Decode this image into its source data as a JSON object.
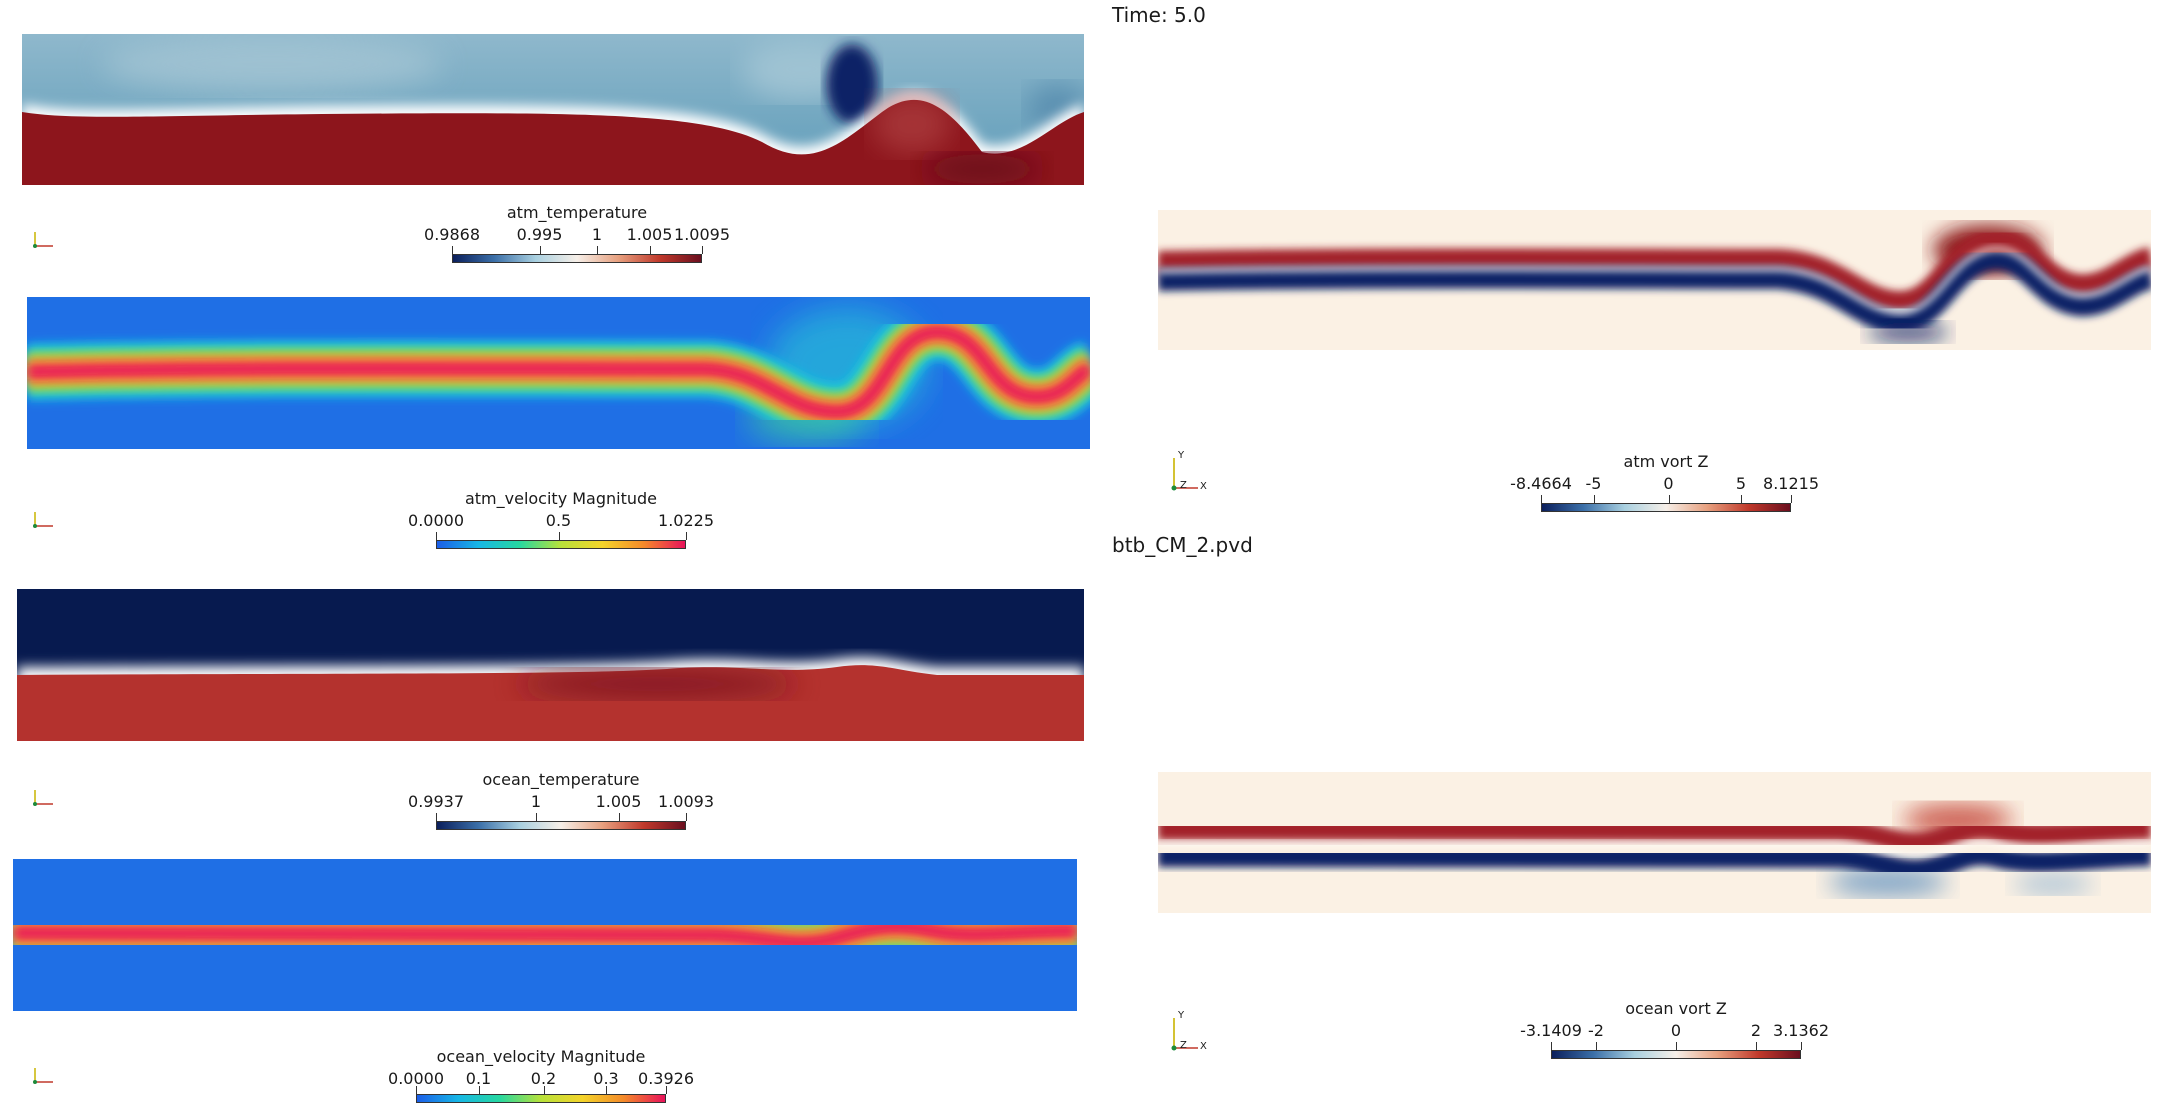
{
  "header": {
    "time_label": "Time: 5.0",
    "file_label": "btb_CM_2.pvd"
  },
  "colorbars": {
    "atm_temperature": {
      "title": "atm_temperature",
      "ticks": [
        "0.9868",
        "0.995",
        "1",
        "1.005",
        "1.0095"
      ],
      "colormap": "cool-warm-blue-red"
    },
    "atm_velocity": {
      "title": "atm_velocity Magnitude",
      "ticks": [
        "0.0000",
        "0.5",
        "1.0225"
      ],
      "colormap": "jet"
    },
    "ocean_temperature": {
      "title": "ocean_temperature",
      "ticks": [
        "0.9937",
        "1",
        "1.005",
        "1.0093"
      ],
      "colormap": "cool-warm-blue-red"
    },
    "ocean_velocity": {
      "title": "ocean_velocity Magnitude",
      "ticks": [
        "0.0000",
        "0.1",
        "0.2",
        "0.3",
        "0.3926"
      ],
      "colormap": "jet"
    },
    "atm_vort": {
      "title": "atm vort Z",
      "ticks": [
        "-8.4664",
        "-5",
        "0",
        "5",
        "8.1215"
      ],
      "colormap": "cool-warm-blue-red"
    },
    "ocean_vort": {
      "title": "ocean vort Z",
      "ticks": [
        "-3.1409",
        "-2",
        "0",
        "2",
        "3.1362"
      ],
      "colormap": "cool-warm-blue-red"
    }
  },
  "axes": {
    "y_label": "Y",
    "z_label": "Z",
    "x_label": "X"
  },
  "colors": {
    "deep_blue": "#0b1f5c",
    "dark_red": "#8a1418",
    "red": "#b42a2a",
    "light_cream": "#fbf1e4",
    "jet_background": "#1e6ae6",
    "jet_peak": "#e8125a"
  }
}
